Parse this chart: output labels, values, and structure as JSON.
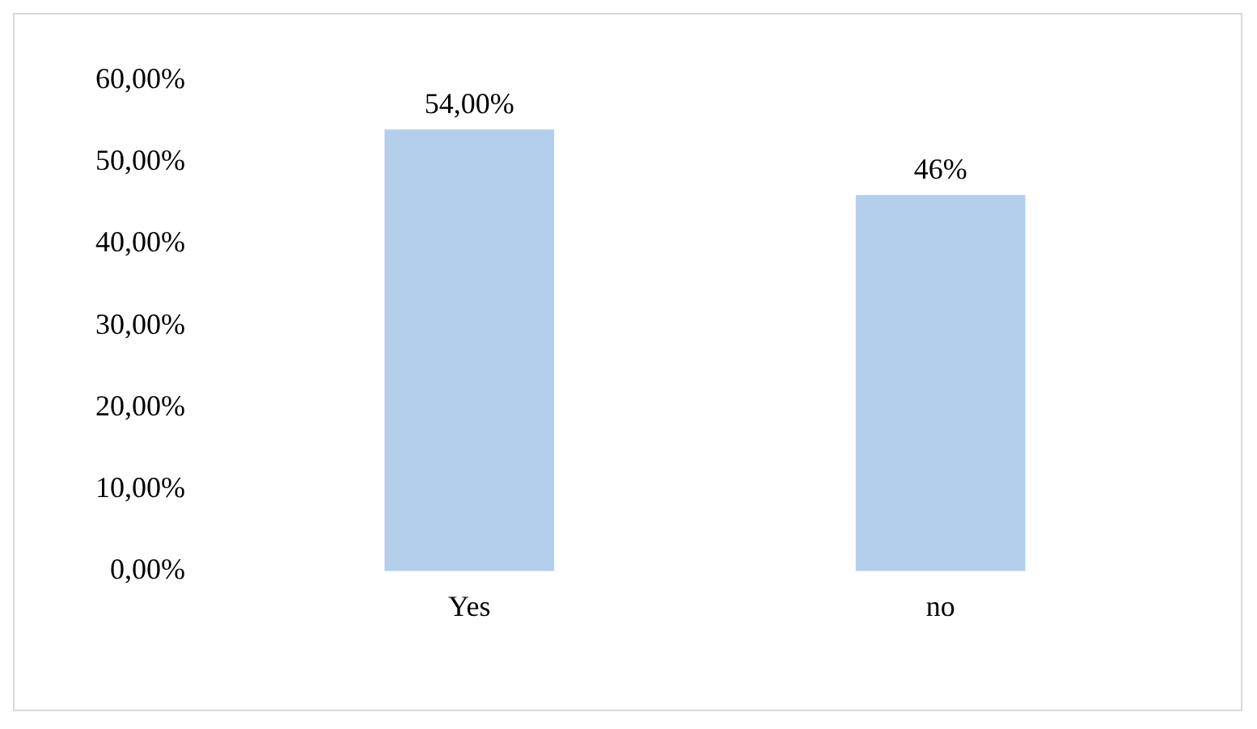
{
  "chart_data": {
    "type": "bar",
    "categories": [
      "Yes",
      "no"
    ],
    "values": [
      54,
      46
    ],
    "value_labels": [
      "54,00%",
      "46%"
    ],
    "color": "#b4cfeb",
    "ylim": [
      0,
      60
    ],
    "yticks": [
      {
        "value": 0,
        "label": "0,00%"
      },
      {
        "value": 10,
        "label": "10,00%"
      },
      {
        "value": 20,
        "label": "20,00%"
      },
      {
        "value": 30,
        "label": "30,00%"
      },
      {
        "value": 40,
        "label": "40,00%"
      },
      {
        "value": 50,
        "label": "50,00%"
      },
      {
        "value": 60,
        "label": "60,00%"
      }
    ],
    "grid": false,
    "legend": false
  }
}
